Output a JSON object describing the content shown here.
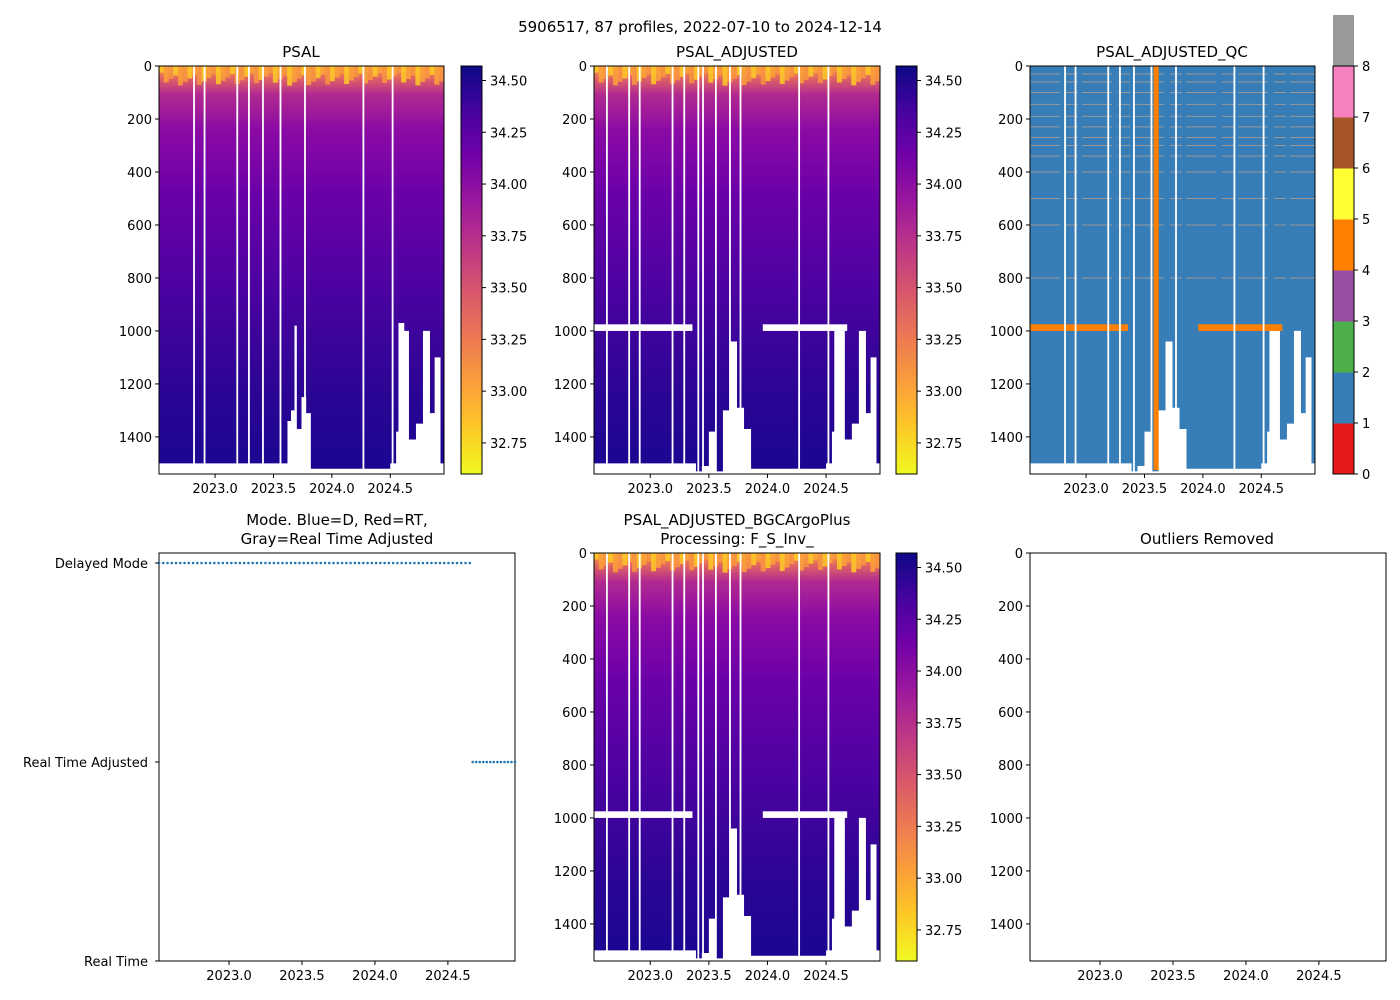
{
  "figure": {
    "suptitle": "5906517, 87 profiles, 2022-07-10 to 2024-12-14"
  },
  "colors": {
    "plasma": [
      "#f0f921",
      "#fdca26",
      "#fb9f3a",
      "#ed7953",
      "#d8576b",
      "#bd3786",
      "#9c179e",
      "#7201a8",
      "#46039f",
      "#0d0887"
    ],
    "qc": [
      "#e41a1c",
      "#377eb8",
      "#4daf4a",
      "#984ea3",
      "#ff7f00",
      "#ffff33",
      "#a65628",
      "#f781bf",
      "#999999"
    ],
    "mode_marker": "#1f77b4"
  },
  "chart_data": [
    {
      "id": "psal",
      "type": "heatmap",
      "title": "PSAL",
      "xlim": [
        2022.52,
        2024.96
      ],
      "ylim": [
        1540,
        0
      ],
      "xticks": [
        "2023.0",
        "2023.5",
        "2024.0",
        "2024.5"
      ],
      "yticks": [
        "0",
        "200",
        "400",
        "600",
        "800",
        "1000",
        "1200",
        "1400"
      ],
      "colorbar": {
        "range": [
          32.6,
          34.57
        ],
        "ticks": [
          "32.75",
          "33.00",
          "33.25",
          "33.50",
          "33.75",
          "34.00",
          "34.25",
          "34.50"
        ]
      },
      "gaps_x": [
        2022.82,
        2022.91,
        2023.19,
        2023.29,
        2023.41,
        2023.56,
        2023.77,
        2024.27,
        2024.52
      ],
      "max_depth_profile": [
        [
          2022.55,
          1500
        ],
        [
          2023.6,
          1500
        ],
        [
          2023.62,
          1340
        ],
        [
          2023.65,
          1300
        ],
        [
          2023.68,
          980
        ],
        [
          2023.7,
          1370
        ],
        [
          2023.74,
          1250
        ],
        [
          2023.78,
          1310
        ],
        [
          2023.82,
          1520
        ],
        [
          2024.5,
          1500
        ],
        [
          2024.55,
          1380
        ],
        [
          2024.57,
          970
        ],
        [
          2024.62,
          1000
        ],
        [
          2024.66,
          1410
        ],
        [
          2024.72,
          1350
        ],
        [
          2024.78,
          1000
        ],
        [
          2024.84,
          1310
        ],
        [
          2024.88,
          1100
        ],
        [
          2024.93,
          1500
        ]
      ]
    },
    {
      "id": "psal_adjusted",
      "type": "heatmap",
      "title": "PSAL_ADJUSTED",
      "xlim": [
        2022.52,
        2024.96
      ],
      "ylim": [
        1540,
        0
      ],
      "xticks": [
        "2023.0",
        "2023.5",
        "2024.0",
        "2024.5"
      ],
      "yticks": [
        "0",
        "200",
        "400",
        "600",
        "800",
        "1000",
        "1200",
        "1400"
      ],
      "colorbar": {
        "range": [
          32.6,
          34.57
        ],
        "ticks": [
          "32.75",
          "33.00",
          "33.25",
          "33.50",
          "33.75",
          "34.00",
          "34.25",
          "34.50"
        ]
      },
      "gaps_x": [
        2022.63,
        2022.82,
        2022.91,
        2023.19,
        2023.29,
        2023.41,
        2023.45,
        2023.56,
        2023.68,
        2023.77,
        2024.27,
        2024.52
      ],
      "blank_band": {
        "depth": [
          975,
          1000
        ],
        "x_ranges": [
          [
            2022.52,
            2023.36
          ],
          [
            2023.96,
            2024.68
          ]
        ]
      },
      "max_depth_profile": [
        [
          2022.55,
          1500
        ],
        [
          2023.36,
          1500
        ],
        [
          2023.39,
          1530
        ],
        [
          2023.44,
          1510
        ],
        [
          2023.5,
          1380
        ],
        [
          2023.56,
          1530
        ],
        [
          2023.62,
          1300
        ],
        [
          2023.68,
          1040
        ],
        [
          2023.74,
          1290
        ],
        [
          2023.8,
          1370
        ],
        [
          2023.86,
          1520
        ],
        [
          2024.5,
          1500
        ],
        [
          2024.55,
          1380
        ],
        [
          2024.57,
          980
        ],
        [
          2024.62,
          1000
        ],
        [
          2024.66,
          1410
        ],
        [
          2024.72,
          1350
        ],
        [
          2024.78,
          1000
        ],
        [
          2024.84,
          1310
        ],
        [
          2024.88,
          1100
        ],
        [
          2024.93,
          1500
        ]
      ]
    },
    {
      "id": "psal_adjusted_qc",
      "type": "heatmap",
      "title": "PSAL_ADJUSTED_QC",
      "xlim": [
        2022.52,
        2024.96
      ],
      "ylim": [
        1540,
        0
      ],
      "xticks": [
        "2023.0",
        "2023.5",
        "2024.0",
        "2024.5"
      ],
      "yticks": [
        "0",
        "200",
        "400",
        "600",
        "800",
        "1000",
        "1200",
        "1400"
      ],
      "colorbar": {
        "range": [
          0,
          8
        ],
        "ticks": [
          "0",
          "1",
          "2",
          "3",
          "4",
          "5",
          "6",
          "7",
          "8"
        ]
      },
      "qc4_band": {
        "depth": [
          975,
          1000
        ],
        "x_ranges": [
          [
            2022.52,
            2023.36
          ],
          [
            2023.96,
            2024.68
          ]
        ]
      },
      "qc4_column_x": 2023.6,
      "qc8_lines_depth": [
        30,
        60,
        100,
        145,
        190,
        230,
        270,
        300,
        340,
        400,
        500,
        600,
        800
      ],
      "gaps_x": [
        2022.82,
        2022.91,
        2023.19,
        2023.29,
        2023.41,
        2023.56,
        2023.77,
        2024.27,
        2024.52
      ],
      "max_depth_profile": [
        [
          2022.55,
          1500
        ],
        [
          2023.36,
          1500
        ],
        [
          2023.39,
          1530
        ],
        [
          2023.44,
          1510
        ],
        [
          2023.5,
          1380
        ],
        [
          2023.56,
          1530
        ],
        [
          2023.62,
          1300
        ],
        [
          2023.68,
          1040
        ],
        [
          2023.74,
          1290
        ],
        [
          2023.8,
          1370
        ],
        [
          2023.86,
          1520
        ],
        [
          2024.5,
          1500
        ],
        [
          2024.55,
          1380
        ],
        [
          2024.57,
          980
        ],
        [
          2024.62,
          1000
        ],
        [
          2024.66,
          1410
        ],
        [
          2024.72,
          1350
        ],
        [
          2024.78,
          1000
        ],
        [
          2024.84,
          1310
        ],
        [
          2024.88,
          1100
        ],
        [
          2024.93,
          1500
        ]
      ]
    },
    {
      "id": "mode",
      "type": "scatter",
      "title": "Mode. Blue=D, Red=RT,",
      "title_line2": "Gray=Real Time Adjusted",
      "xlim": [
        2022.52,
        2024.96
      ],
      "xticks": [
        "2023.0",
        "2023.5",
        "2024.0",
        "2024.5"
      ],
      "y_categories": [
        "Real Time",
        "Real Time Adjusted",
        "Delayed Mode"
      ],
      "delayed_range": [
        2022.52,
        2024.65
      ],
      "rt_adjusted_range": [
        2024.67,
        2024.96
      ],
      "n_profiles": 87
    },
    {
      "id": "bgc",
      "type": "heatmap",
      "title": "PSAL_ADJUSTED_BGCArgoPlus",
      "title_line2": "Processing: F_S_Inv_",
      "xlim": [
        2022.52,
        2024.96
      ],
      "ylim": [
        1540,
        0
      ],
      "xticks": [
        "2023.0",
        "2023.5",
        "2024.0",
        "2024.5"
      ],
      "yticks": [
        "0",
        "200",
        "400",
        "600",
        "800",
        "1000",
        "1200",
        "1400"
      ],
      "colorbar": {
        "range": [
          32.6,
          34.57
        ],
        "ticks": [
          "32.75",
          "33.00",
          "33.25",
          "33.50",
          "33.75",
          "34.00",
          "34.25",
          "34.50"
        ]
      },
      "gaps_x": [
        2022.63,
        2022.82,
        2022.91,
        2023.19,
        2023.29,
        2023.41,
        2023.45,
        2023.56,
        2023.68,
        2023.77,
        2024.27,
        2024.52
      ],
      "blank_band": {
        "depth": [
          975,
          1000
        ],
        "x_ranges": [
          [
            2022.52,
            2023.36
          ],
          [
            2023.96,
            2024.68
          ]
        ]
      },
      "max_depth_profile": [
        [
          2022.55,
          1500
        ],
        [
          2023.36,
          1500
        ],
        [
          2023.39,
          1530
        ],
        [
          2023.44,
          1510
        ],
        [
          2023.5,
          1380
        ],
        [
          2023.56,
          1530
        ],
        [
          2023.62,
          1300
        ],
        [
          2023.68,
          1040
        ],
        [
          2023.74,
          1290
        ],
        [
          2023.8,
          1370
        ],
        [
          2023.86,
          1520
        ],
        [
          2024.5,
          1500
        ],
        [
          2024.55,
          1380
        ],
        [
          2024.57,
          980
        ],
        [
          2024.62,
          1000
        ],
        [
          2024.66,
          1410
        ],
        [
          2024.72,
          1350
        ],
        [
          2024.78,
          1000
        ],
        [
          2024.84,
          1310
        ],
        [
          2024.88,
          1100
        ],
        [
          2024.93,
          1500
        ]
      ]
    },
    {
      "id": "outliers",
      "type": "scatter",
      "title": "Outliers Removed",
      "xlim": [
        2022.52,
        2024.96
      ],
      "ylim": [
        1540,
        0
      ],
      "xticks": [
        "2023.0",
        "2023.5",
        "2024.0",
        "2024.5"
      ],
      "yticks": [
        "0",
        "200",
        "400",
        "600",
        "800",
        "1000",
        "1200",
        "1400"
      ]
    }
  ]
}
